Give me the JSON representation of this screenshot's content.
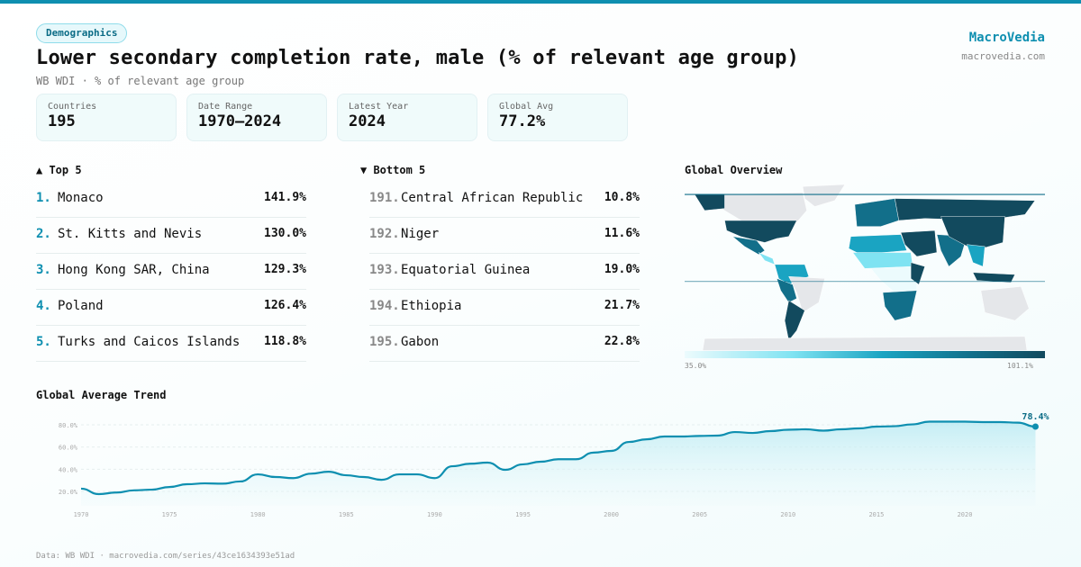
{
  "header": {
    "category": "Demographics",
    "title": "Lower secondary completion rate, male (% of relevant age group)",
    "subtitle": "WB WDI · % of relevant age group",
    "brand": "MacroVedia",
    "brand_url": "macrovedia.com"
  },
  "stats": [
    {
      "label": "Countries",
      "value": "195"
    },
    {
      "label": "Date Range",
      "value": "1970–2024"
    },
    {
      "label": "Latest Year",
      "value": "2024"
    },
    {
      "label": "Global Avg",
      "value": "77.2%"
    }
  ],
  "top5": {
    "title": "▲ Top 5",
    "items": [
      {
        "rank": "1.",
        "name": "Monaco",
        "value": "141.9%"
      },
      {
        "rank": "2.",
        "name": "St. Kitts and Nevis",
        "value": "130.0%"
      },
      {
        "rank": "3.",
        "name": "Hong Kong SAR, China",
        "value": "129.3%"
      },
      {
        "rank": "4.",
        "name": "Poland",
        "value": "126.4%"
      },
      {
        "rank": "5.",
        "name": "Turks and Caicos Islands",
        "value": "118.8%"
      }
    ]
  },
  "bottom5": {
    "title": "▼ Bottom 5",
    "items": [
      {
        "rank": "191.",
        "name": "Central African Republic",
        "value": "10.8%"
      },
      {
        "rank": "192.",
        "name": "Niger",
        "value": "11.6%"
      },
      {
        "rank": "193.",
        "name": "Equatorial Guinea",
        "value": "19.0%"
      },
      {
        "rank": "194.",
        "name": "Ethiopia",
        "value": "21.7%"
      },
      {
        "rank": "195.",
        "name": "Gabon",
        "value": "22.8%"
      }
    ]
  },
  "map": {
    "title": "Global Overview",
    "legend_min": "35.0%",
    "legend_max": "101.1%",
    "colors": {
      "low": "#ecfbfd",
      "mid": "#1aa4c2",
      "high": "#124a5e",
      "no_data": "#e5e7ea"
    }
  },
  "trend": {
    "title": "Global Average Trend",
    "last_label": "78.4%",
    "color": "#0e8fb0"
  },
  "chart_data": {
    "type": "area",
    "title": "Global Average Trend",
    "x": [
      1970,
      1971,
      1972,
      1973,
      1974,
      1975,
      1976,
      1977,
      1978,
      1979,
      1980,
      1981,
      1982,
      1983,
      1984,
      1985,
      1986,
      1987,
      1988,
      1989,
      1990,
      1991,
      1992,
      1993,
      1994,
      1995,
      1996,
      1997,
      1998,
      1999,
      2000,
      2001,
      2002,
      2003,
      2004,
      2005,
      2006,
      2007,
      2008,
      2009,
      2010,
      2011,
      2012,
      2013,
      2014,
      2015,
      2016,
      2017,
      2018,
      2019,
      2020,
      2021,
      2022,
      2023,
      2024
    ],
    "values": [
      22.5,
      17.6,
      19,
      21,
      21.6,
      24,
      26.5,
      27.3,
      27,
      29,
      35.4,
      33,
      32,
      36,
      37.8,
      34.6,
      33,
      30.5,
      35.4,
      35.4,
      32,
      42.7,
      45,
      46,
      39.5,
      44.4,
      46.8,
      49,
      49,
      55,
      56.5,
      64.6,
      67,
      69.5,
      69.5,
      70,
      70.3,
      73.5,
      72.7,
      74.4,
      75.6,
      76,
      74.8,
      76,
      76.8,
      78.4,
      78.8,
      80.4,
      82.9,
      82.9,
      82.9,
      82.5,
      82.5,
      82,
      78.4
    ],
    "yticks": [
      "20.0%",
      "40.0%",
      "60.0%",
      "80.0%"
    ],
    "ytick_values": [
      20,
      40,
      60,
      80
    ],
    "xticks": [
      "1970",
      "1975",
      "1980",
      "1985",
      "1990",
      "1995",
      "2000",
      "2005",
      "2010",
      "2015",
      "2020"
    ],
    "grid": true
  },
  "footer": "Data: WB WDI · macrovedia.com/series/43ce1634393e51ad"
}
